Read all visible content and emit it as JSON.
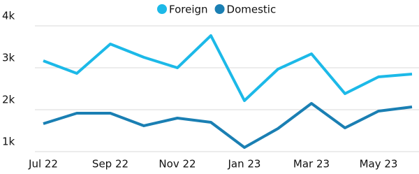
{
  "chart_data": {
    "type": "line",
    "categories": [
      "Jul 22",
      null,
      "Sep 22",
      null,
      "Nov 22",
      null,
      "Jan 23",
      null,
      "Mar 23",
      null,
      "May 23",
      null
    ],
    "series": [
      {
        "name": "Foreign",
        "color": "#1cb9e8",
        "values": [
          3167,
          2867,
          3567,
          3250,
          3000,
          3767,
          2217,
          2967,
          3333,
          2383,
          2783,
          2850
        ]
      },
      {
        "name": "Domestic",
        "color": "#1a7fb3",
        "values": [
          1667,
          1917,
          1917,
          1617,
          1800,
          1700,
          1100,
          1550,
          2150,
          1567,
          1967,
          2067
        ]
      }
    ],
    "ylim": [
      1000,
      4000
    ],
    "yticks": [
      {
        "value": 1000,
        "label": "1k"
      },
      {
        "value": 2000,
        "label": "2k"
      },
      {
        "value": 3000,
        "label": "3k"
      },
      {
        "value": 4000,
        "label": "4k"
      }
    ],
    "grid": true,
    "legend": "top"
  }
}
